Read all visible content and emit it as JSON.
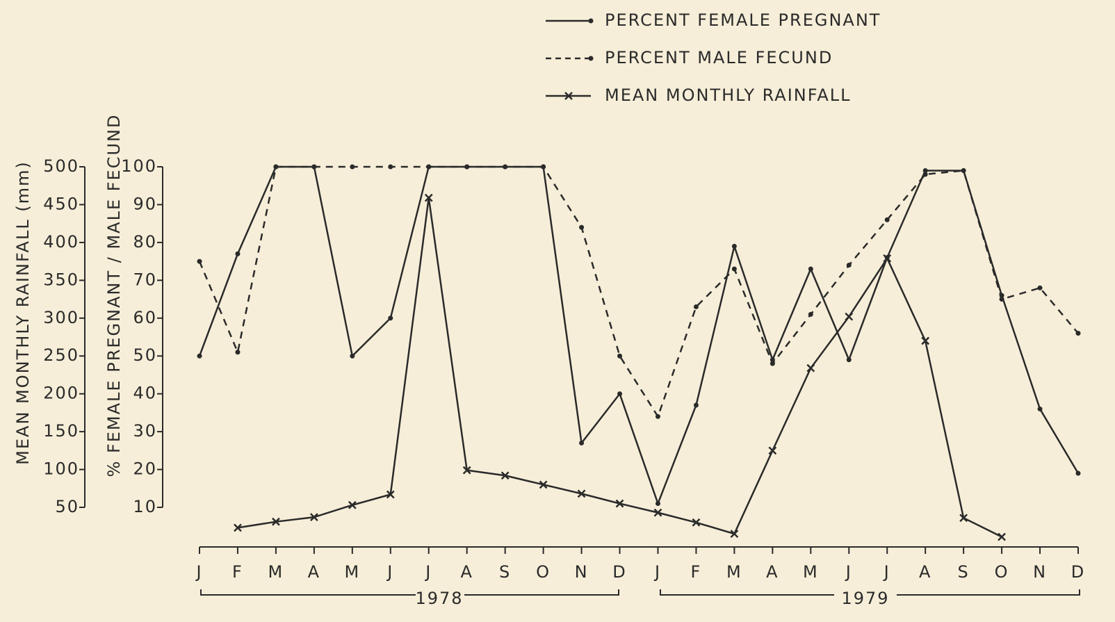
{
  "chart_data": {
    "type": "line",
    "y_label": "% FEMALE PREGNANT / MALE FECUND",
    "y2_label": "MEAN MONTHLY RAINFALL (mm)",
    "categories": [
      "J",
      "F",
      "M",
      "A",
      "M",
      "J",
      "J",
      "A",
      "S",
      "O",
      "N",
      "D",
      "J",
      "F",
      "M",
      "A",
      "M",
      "J",
      "J",
      "A",
      "S",
      "O",
      "N",
      "D"
    ],
    "year_labels": [
      "1978",
      "1979"
    ],
    "ylim": [
      10,
      100
    ],
    "yticks": [
      10,
      20,
      30,
      40,
      50,
      60,
      70,
      80,
      90,
      100
    ],
    "y2lim": [
      50,
      500
    ],
    "y2ticks": [
      50,
      100,
      150,
      200,
      250,
      300,
      350,
      400,
      450,
      500
    ],
    "series": [
      {
        "name": "PERCENT FEMALE PREGNANT",
        "color": "#2a2a2a",
        "dash": "solid",
        "marker": "dot",
        "values": [
          50,
          77,
          100,
          100,
          50,
          60,
          100,
          100,
          100,
          100,
          27,
          40,
          11,
          37,
          79,
          49,
          73,
          49,
          76,
          99,
          99,
          66,
          36,
          19
        ]
      },
      {
        "name": "PERCENT MALE FECUND",
        "color": "#2a2a2a",
        "dash": "dashed",
        "marker": "dot",
        "values": [
          75,
          51,
          100,
          100,
          100,
          100,
          100,
          100,
          100,
          100,
          84,
          50,
          34,
          63,
          73,
          48,
          61,
          74,
          86,
          98,
          99,
          65,
          68,
          56
        ]
      },
      {
        "name": "MEAN MONTHLY RAINFALL",
        "color": "#2a2a2a",
        "dash": "solid",
        "marker": "x",
        "axis": "y2",
        "values": [
          null,
          23,
          31,
          37,
          53,
          67,
          459,
          99,
          92,
          80,
          68,
          55,
          43,
          30,
          15,
          125,
          234,
          302,
          379,
          270,
          36,
          11,
          null,
          null
        ]
      }
    ]
  }
}
